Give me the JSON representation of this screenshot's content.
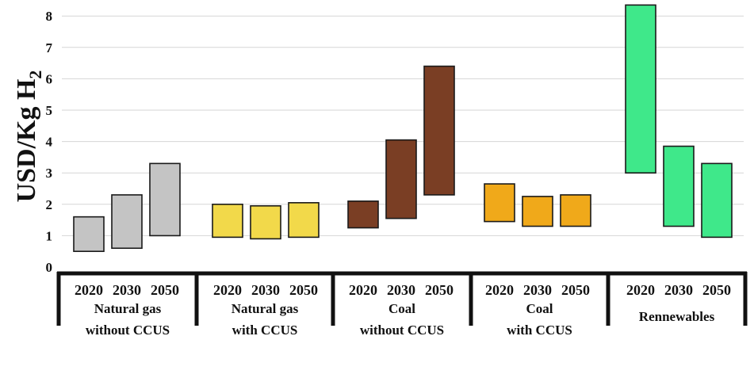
{
  "chart_data": {
    "type": "bar",
    "subtype": "floating-range",
    "ylabel": "USD/Kg H",
    "ylabel_subscript": "2",
    "ylim": [
      0,
      8.5
    ],
    "yticks": [
      "0",
      "1",
      "2",
      "3",
      "4",
      "5",
      "6",
      "7",
      "8"
    ],
    "grid": true,
    "groups": [
      {
        "label_line1": "Natural gas",
        "label_line2": "without CCUS",
        "color": "#c4c4c4",
        "bars": [
          {
            "year": "2020",
            "low": 0.5,
            "high": 1.6
          },
          {
            "year": "2030",
            "low": 0.6,
            "high": 2.3
          },
          {
            "year": "2050",
            "low": 1.0,
            "high": 3.3
          }
        ]
      },
      {
        "label_line1": "Natural gas",
        "label_line2": "with CCUS",
        "color": "#f2d94a",
        "bars": [
          {
            "year": "2020",
            "low": 0.95,
            "high": 2.0
          },
          {
            "year": "2030",
            "low": 0.9,
            "high": 1.95
          },
          {
            "year": "2050",
            "low": 0.95,
            "high": 2.05
          }
        ]
      },
      {
        "label_line1": "Coal",
        "label_line2": "without CCUS",
        "color": "#7a3e24",
        "bars": [
          {
            "year": "2020",
            "low": 1.25,
            "high": 2.1
          },
          {
            "year": "2030",
            "low": 1.55,
            "high": 4.05
          },
          {
            "year": "2050",
            "low": 2.3,
            "high": 6.4
          }
        ]
      },
      {
        "label_line1": "Coal",
        "label_line2": "with CCUS",
        "color": "#f0a91a",
        "bars": [
          {
            "year": "2020",
            "low": 1.45,
            "high": 2.65
          },
          {
            "year": "2030",
            "low": 1.3,
            "high": 2.25
          },
          {
            "year": "2050",
            "low": 1.3,
            "high": 2.3
          }
        ]
      },
      {
        "label_line1": "Rennewables",
        "label_line2": "",
        "color": "#3fe88a",
        "bars": [
          {
            "year": "2020",
            "low": 3.0,
            "high": 8.35
          },
          {
            "year": "2030",
            "low": 1.3,
            "high": 3.85
          },
          {
            "year": "2050",
            "low": 0.95,
            "high": 3.3
          }
        ]
      }
    ]
  }
}
